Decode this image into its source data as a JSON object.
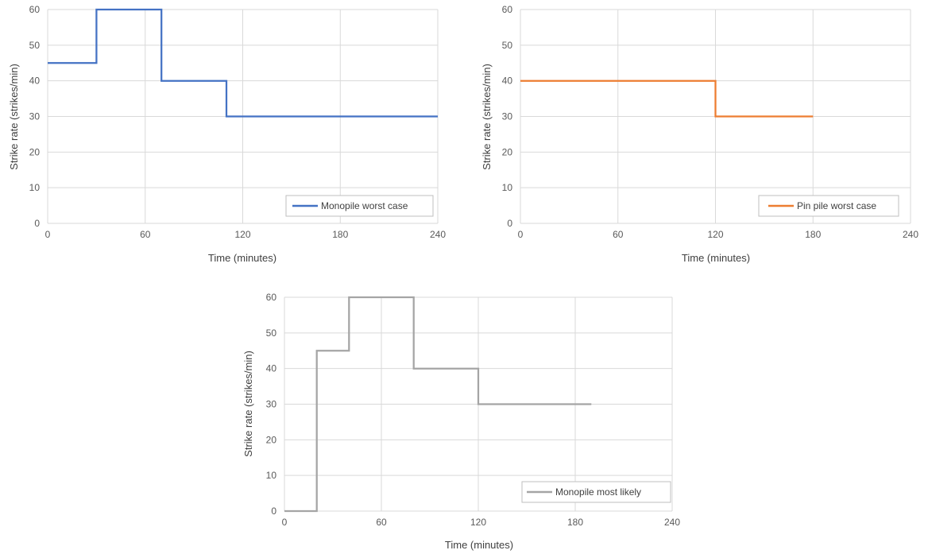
{
  "charts": [
    {
      "axis_titles": {
        "x": "Time (minutes)",
        "y": "Strike rate (strikes/min)"
      },
      "legend": "Monopile worst case"
    },
    {
      "axis_titles": {
        "x": "Time (minutes)",
        "y": "Strike rate (strikes/min)"
      },
      "legend": "Pin pile worst case"
    },
    {
      "axis_titles": {
        "x": "Time (minutes)",
        "y": "Strike rate (strikes/min)"
      },
      "legend": "Monopile most likely"
    }
  ],
  "chart_data": [
    {
      "type": "line",
      "step": true,
      "xlabel": "Time (minutes)",
      "ylabel": "Strike rate (strikes/min)",
      "xlim": [
        0,
        240
      ],
      "ylim": [
        0,
        60
      ],
      "xticks": [
        0,
        60,
        120,
        180,
        240
      ],
      "yticks": [
        0,
        10,
        20,
        30,
        40,
        50,
        60
      ],
      "grid": true,
      "legend_position": "bottom-right",
      "series": [
        {
          "name": "Monopile worst case",
          "color": "#4472C4",
          "points": [
            [
              0,
              45
            ],
            [
              30,
              45
            ],
            [
              30,
              60
            ],
            [
              70,
              60
            ],
            [
              70,
              40
            ],
            [
              110,
              40
            ],
            [
              110,
              30
            ],
            [
              240,
              30
            ]
          ]
        }
      ]
    },
    {
      "type": "line",
      "step": true,
      "xlabel": "Time (minutes)",
      "ylabel": "Strike rate (strikes/min)",
      "xlim": [
        0,
        240
      ],
      "ylim": [
        0,
        60
      ],
      "xticks": [
        0,
        60,
        120,
        180,
        240
      ],
      "yticks": [
        0,
        10,
        20,
        30,
        40,
        50,
        60
      ],
      "grid": true,
      "legend_position": "bottom-right",
      "series": [
        {
          "name": "Pin pile worst case",
          "color": "#ED7D31",
          "points": [
            [
              0,
              40
            ],
            [
              120,
              40
            ],
            [
              120,
              30
            ],
            [
              180,
              30
            ]
          ]
        }
      ]
    },
    {
      "type": "line",
      "step": true,
      "xlabel": "Time (minutes)",
      "ylabel": "Strike rate (strikes/min)",
      "xlim": [
        0,
        240
      ],
      "ylim": [
        0,
        60
      ],
      "xticks": [
        0,
        60,
        120,
        180,
        240
      ],
      "yticks": [
        0,
        10,
        20,
        30,
        40,
        50,
        60
      ],
      "grid": true,
      "legend_position": "bottom-right",
      "series": [
        {
          "name": "Monopile most likely",
          "color": "#A5A5A5",
          "points": [
            [
              0,
              0
            ],
            [
              20,
              0
            ],
            [
              20,
              45
            ],
            [
              40,
              45
            ],
            [
              40,
              60
            ],
            [
              80,
              60
            ],
            [
              80,
              40
            ],
            [
              120,
              40
            ],
            [
              120,
              30
            ],
            [
              190,
              30
            ]
          ]
        }
      ]
    }
  ]
}
